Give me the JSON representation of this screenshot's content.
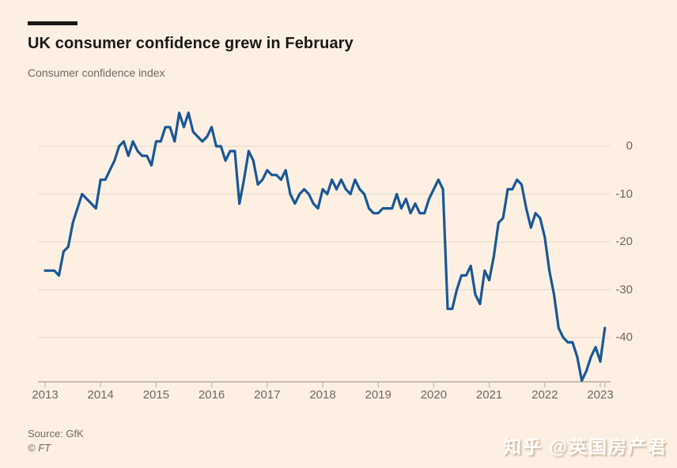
{
  "header": {
    "title": "UK consumer confidence grew in February",
    "subtitle": "Consumer confidence index"
  },
  "footer": {
    "source": "Source: GfK",
    "copyright": "© FT"
  },
  "watermark": {
    "text": "知乎 @英国房产君"
  },
  "colors": {
    "background": "#FDF0E3",
    "line": "#1A5796",
    "grid": "#E8DCCC",
    "axis": "#A79C90",
    "tick": "#C2B7A8",
    "title_text": "#1A1817",
    "secondary_text": "#6F6760",
    "accent_bar": "#1A1817",
    "watermark_text": "#FFFDF9"
  },
  "chart_data": {
    "type": "line",
    "title": "UK consumer confidence grew in February",
    "ylabel": "Consumer confidence index",
    "frequency": "monthly",
    "start": "2013-01",
    "end": "2023-02",
    "x_tick_labels": [
      "2013",
      "2014",
      "2015",
      "2016",
      "2017",
      "2018",
      "2019",
      "2020",
      "2021",
      "2022",
      "2023"
    ],
    "y_ticks": [
      0,
      -10,
      -20,
      -30,
      -40
    ],
    "ylim": [
      -50,
      10
    ],
    "grid": "horizontal",
    "legend": "none",
    "series": [
      {
        "name": "GfK consumer confidence index",
        "values": [
          -26,
          -26,
          -26,
          -27,
          -22,
          -21,
          -16,
          -13,
          -10,
          -11,
          -12,
          -13,
          -7,
          -7,
          -5,
          -3,
          0,
          1,
          -2,
          1,
          -1,
          -2,
          -2,
          -4,
          1,
          1,
          4,
          4,
          1,
          7,
          4,
          7,
          3,
          2,
          1,
          2,
          4,
          0,
          0,
          -3,
          -1,
          -1,
          -12,
          -7,
          -1,
          -3,
          -8,
          -7,
          -5,
          -6,
          -6,
          -7,
          -5,
          -10,
          -12,
          -10,
          -9,
          -10,
          -12,
          -13,
          -9,
          -10,
          -7,
          -9,
          -7,
          -9,
          -10,
          -7,
          -9,
          -10,
          -13,
          -14,
          -14,
          -13,
          -13,
          -13,
          -10,
          -13,
          -11,
          -14,
          -12,
          -14,
          -14,
          -11,
          -9,
          -7,
          -9,
          -34,
          -34,
          -30,
          -27,
          -27,
          -25,
          -31,
          -33,
          -26,
          -28,
          -23,
          -16,
          -15,
          -9,
          -9,
          -7,
          -8,
          -13,
          -17,
          -14,
          -15,
          -19,
          -26,
          -31,
          -38,
          -40,
          -41,
          -41,
          -44,
          -49,
          -47,
          -44,
          -42,
          -45,
          -38
        ]
      }
    ]
  }
}
